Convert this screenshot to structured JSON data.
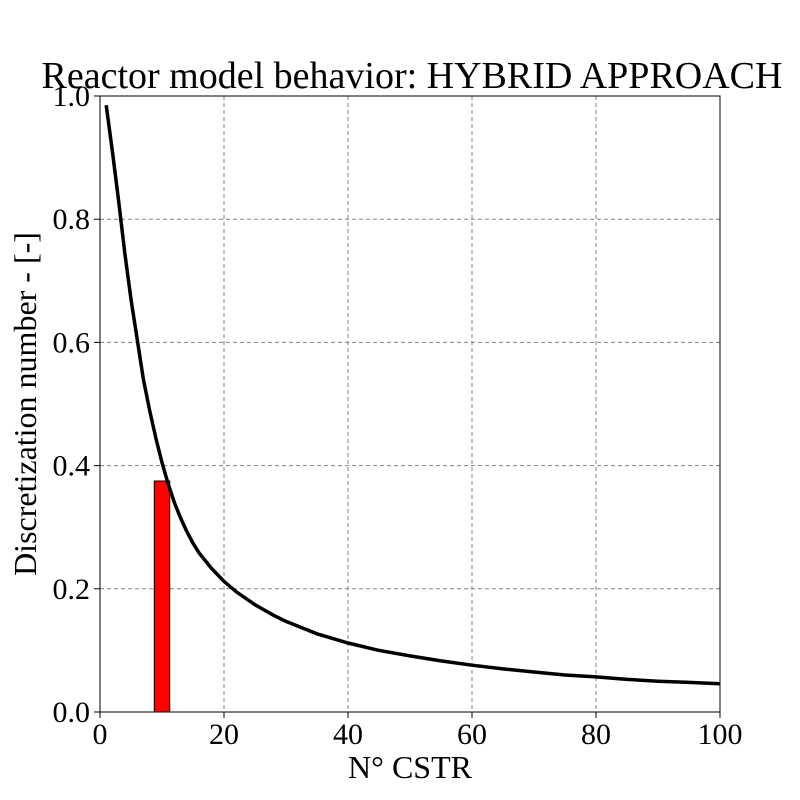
{
  "chart_data": {
    "type": "line",
    "title": "Reactor model behavior: HYBRID APPROACH",
    "xlabel": "N° CSTR",
    "ylabel": "Discretization number - [-]",
    "xlim": [
      0,
      100
    ],
    "ylim": [
      0,
      1.0
    ],
    "x_ticks": [
      "0",
      "20",
      "40",
      "60",
      "80",
      "100"
    ],
    "y_ticks": [
      "0.0",
      "0.2",
      "0.4",
      "0.6",
      "0.8",
      "1.0"
    ],
    "grid": true,
    "series": [
      {
        "type": "line",
        "color": "#000000",
        "x": [
          1,
          2,
          3,
          4,
          5,
          6,
          7,
          8,
          9,
          10,
          11,
          12,
          13,
          14,
          15,
          16,
          18,
          20,
          22,
          25,
          28,
          30,
          35,
          40,
          45,
          50,
          55,
          60,
          65,
          70,
          75,
          80,
          85,
          90,
          95,
          100
        ],
        "y": [
          0.985,
          0.91,
          0.83,
          0.745,
          0.67,
          0.605,
          0.54,
          0.49,
          0.445,
          0.405,
          0.37,
          0.34,
          0.315,
          0.293,
          0.274,
          0.258,
          0.233,
          0.212,
          0.195,
          0.174,
          0.157,
          0.147,
          0.127,
          0.112,
          0.1,
          0.091,
          0.083,
          0.076,
          0.07,
          0.065,
          0.06,
          0.057,
          0.053,
          0.05,
          0.048,
          0.046
        ]
      },
      {
        "type": "bar",
        "color": "#ff0000",
        "x": [
          10
        ],
        "width": 2.5,
        "values": [
          0.375
        ]
      }
    ]
  }
}
